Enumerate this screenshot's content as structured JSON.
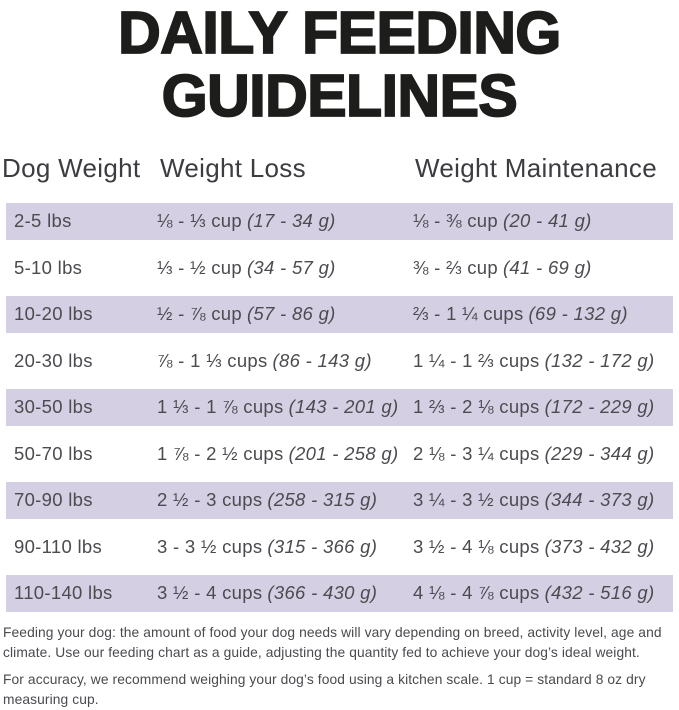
{
  "title": {
    "line1": "DAILY FEEDING",
    "line2": "GUIDELINES"
  },
  "table": {
    "columns": [
      "Dog Weight",
      "Weight Loss",
      "Weight Maintenance"
    ],
    "rows": [
      {
        "weight": "2-5 lbs",
        "loss_cups": "⅛ - ⅓ cup",
        "loss_grams": "(17 - 34 g)",
        "maint_cups": "⅛ - ⅜ cup",
        "maint_grams": "(20 - 41 g)"
      },
      {
        "weight": "5-10 lbs",
        "loss_cups": "⅓ - ½ cup",
        "loss_grams": "(34 - 57 g)",
        "maint_cups": "⅜ - ⅔ cup",
        "maint_grams": "(41 - 69 g)"
      },
      {
        "weight": "10-20 lbs",
        "loss_cups": "½ - ⅞ cup",
        "loss_grams": "(57 - 86 g)",
        "maint_cups": "⅔ - 1 ¼ cups",
        "maint_grams": "(69 - 132 g)"
      },
      {
        "weight": "20-30 lbs",
        "loss_cups": "⅞ - 1 ⅓ cups",
        "loss_grams": "(86 - 143 g)",
        "maint_cups": "1 ¼ - 1 ⅔ cups",
        "maint_grams": "(132 - 172 g)"
      },
      {
        "weight": "30-50 lbs",
        "loss_cups": "1 ⅓ - 1 ⅞ cups",
        "loss_grams": "(143 - 201 g)",
        "maint_cups": "1 ⅔ - 2 ⅛ cups",
        "maint_grams": "(172 - 229 g)"
      },
      {
        "weight": "50-70 lbs",
        "loss_cups": "1 ⅞ - 2 ½ cups",
        "loss_grams": "(201 - 258 g)",
        "maint_cups": "2 ⅛ - 3 ¼ cups",
        "maint_grams": "(229 - 344 g)"
      },
      {
        "weight": "70-90 lbs",
        "loss_cups": "2 ½ - 3 cups",
        "loss_grams": "(258 - 315 g)",
        "maint_cups": "3 ¼ - 3 ½ cups",
        "maint_grams": "(344 - 373 g)"
      },
      {
        "weight": "90-110 lbs",
        "loss_cups": "3 - 3 ½ cups",
        "loss_grams": "(315 - 366 g)",
        "maint_cups": "3 ½ - 4 ⅛ cups",
        "maint_grams": "(373 - 432 g)"
      },
      {
        "weight": "110-140 lbs",
        "loss_cups": "3 ½ - 4 cups",
        "loss_grams": "(366 - 430 g)",
        "maint_cups": "4 ⅛ - 4 ⅞ cups",
        "maint_grams": "(432 - 516 g)"
      }
    ]
  },
  "footer": {
    "para1": "Feeding your dog: the amount of food your dog needs will vary depending on breed, activity level, age and climate. Use our feeding chart as a guide, adjusting the quantity fed to achieve your dog’s ideal weight.",
    "para2": "For accuracy, we recommend weighing your dog’s food using a kitchen scale. 1 cup = standard 8 oz dry measuring cup."
  },
  "colors": {
    "row_shade": "#d5cfe4",
    "title_text": "#1d1d1b",
    "body_text": "#4b4b50"
  }
}
